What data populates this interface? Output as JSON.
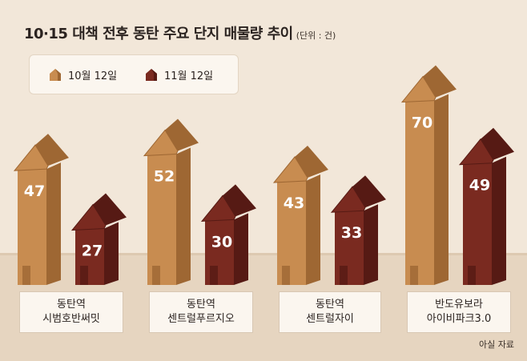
{
  "title": "10·15 대책 전후 동탄 주요 단지 매물량 추이",
  "unit": "(단위 : 건)",
  "source": "아실 자료",
  "colors": {
    "background": "#f2e7d9",
    "floor": "#e6d5c0",
    "oct": "#c88c50",
    "oct_side": "#9e6733",
    "nov": "#7a2a20",
    "nov_side": "#561a14"
  },
  "chart_data": {
    "type": "bar",
    "title": "10·15 대책 전후 동탄 주요 단지 매물량 추이",
    "ylabel": "(단위 : 건)",
    "categories": [
      [
        "동탄역",
        "시범호반써밋"
      ],
      [
        "동탄역",
        "센트럴푸르지오"
      ],
      [
        "동탄역",
        "센트럴자이"
      ],
      [
        "반도유보라",
        "아이비파크3.0"
      ]
    ],
    "series": [
      {
        "name": "10월 12일",
        "values": [
          47,
          52,
          43,
          70
        ]
      },
      {
        "name": "11월 12일",
        "values": [
          27,
          30,
          33,
          49
        ]
      }
    ],
    "legend": "top-left"
  }
}
